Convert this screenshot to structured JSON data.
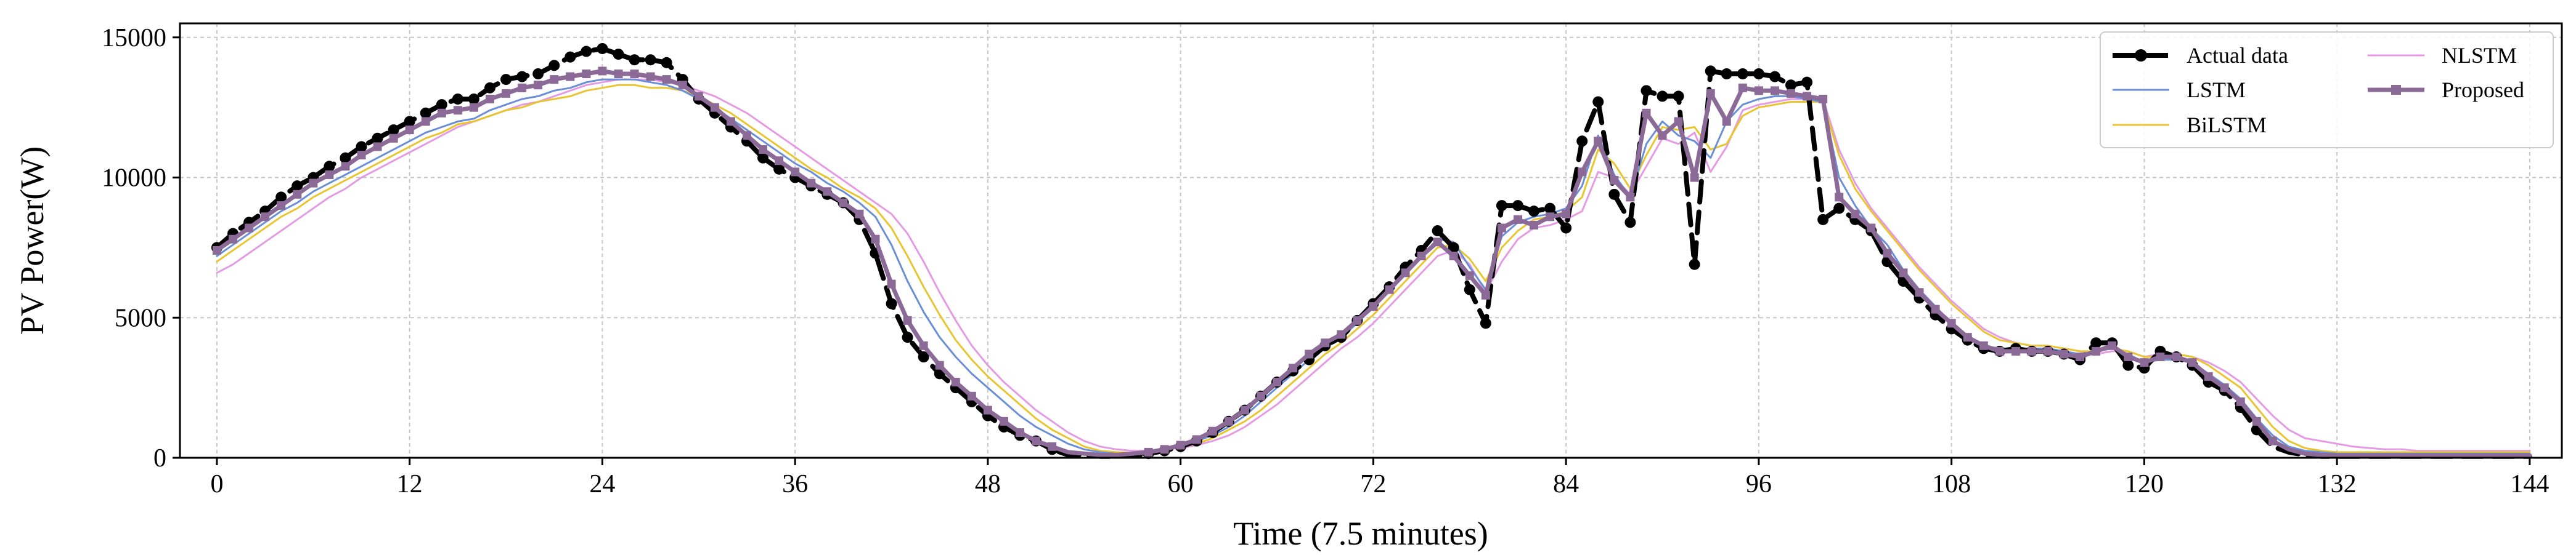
{
  "chart_data": {
    "type": "line",
    "title": "",
    "xlabel": "Time (7.5 minutes)",
    "ylabel": "PV Power(W)",
    "xlim": [
      -2.3,
      146
    ],
    "ylim": [
      0,
      15500
    ],
    "xticks": [
      0,
      12,
      24,
      36,
      48,
      60,
      72,
      84,
      96,
      108,
      120,
      132,
      144
    ],
    "yticks": [
      0,
      5000,
      10000,
      15000
    ],
    "xtick_labels": [
      "0",
      "12",
      "24",
      "36",
      "48",
      "60",
      "72",
      "84",
      "96",
      "108",
      "120",
      "132",
      "144"
    ],
    "ytick_labels": [
      "0",
      "5000",
      "10000",
      "15000"
    ],
    "grid": true,
    "legend_position": "top-right",
    "colors": {
      "Actual data": "#000000",
      "LSTM": "#6b8fd6",
      "BiLSTM": "#e8c531",
      "NLSTM": "#e49be4",
      "Proposed": "#8c6a98"
    },
    "series": [
      {
        "name": "Actual data",
        "style": "dashed-with-circle-markers",
        "x_start": 0,
        "x_step": 1,
        "values": [
          7500,
          8000,
          8400,
          8800,
          9300,
          9700,
          10000,
          10400,
          10700,
          11100,
          11400,
          11700,
          12000,
          12300,
          12600,
          12800,
          12800,
          13200,
          13500,
          13600,
          13700,
          14000,
          14300,
          14500,
          14600,
          14400,
          14200,
          14200,
          14100,
          13500,
          12800,
          12300,
          11800,
          11300,
          10700,
          10300,
          10000,
          9700,
          9400,
          9100,
          8500,
          7300,
          5500,
          4300,
          3600,
          3000,
          2500,
          2000,
          1500,
          1100,
          800,
          600,
          300,
          100,
          100,
          50,
          50,
          80,
          150,
          250,
          400,
          600,
          900,
          1300,
          1700,
          2200,
          2700,
          3100,
          3500,
          4000,
          4300,
          4900,
          5500,
          6100,
          6800,
          7400,
          8100,
          7500,
          6000,
          4800,
          9000,
          9000,
          8800,
          8900,
          8200,
          11300,
          12700,
          9400,
          8400,
          13100,
          12900,
          12900,
          6900,
          13800,
          13700,
          13700,
          13700,
          13600,
          13300,
          13400,
          8500,
          8900,
          8500,
          8100,
          7000,
          6300,
          5700,
          5100,
          4600,
          4200,
          3900,
          3800,
          3900,
          3800,
          3800,
          3700,
          3500,
          4100,
          4100,
          3300,
          3200,
          3800,
          3600,
          3300,
          2700,
          2400,
          1800,
          1000,
          400,
          200,
          100,
          50,
          50,
          50,
          50,
          50,
          50,
          50,
          50,
          50,
          50,
          50,
          50,
          50,
          50
        ]
      },
      {
        "name": "LSTM",
        "style": "solid",
        "x_start": 0,
        "x_step": 1,
        "values": [
          7200,
          7600,
          8000,
          8400,
          8800,
          9100,
          9500,
          9800,
          10100,
          10400,
          10700,
          11000,
          11300,
          11600,
          11800,
          12000,
          12100,
          12400,
          12600,
          12800,
          12900,
          13100,
          13200,
          13400,
          13500,
          13500,
          13500,
          13400,
          13300,
          13100,
          12800,
          12500,
          12100,
          11700,
          11300,
          10900,
          10500,
          10200,
          9800,
          9500,
          9100,
          8600,
          7600,
          6300,
          5200,
          4300,
          3600,
          3000,
          2500,
          2000,
          1500,
          1100,
          800,
          500,
          300,
          200,
          150,
          150,
          200,
          300,
          400,
          600,
          800,
          1100,
          1500,
          2000,
          2500,
          3000,
          3500,
          3900,
          4300,
          4800,
          5400,
          6000,
          6600,
          7200,
          7800,
          7700,
          6800,
          6000,
          7900,
          8400,
          8600,
          8700,
          8900,
          9700,
          11500,
          10100,
          9300,
          11200,
          12000,
          11500,
          11300,
          10700,
          12000,
          12600,
          12800,
          12900,
          12900,
          12800,
          12700,
          10000,
          9000,
          8200,
          7600,
          6700,
          6000,
          5400,
          4800,
          4300,
          4000,
          3900,
          3900,
          3900,
          3900,
          3800,
          3700,
          3800,
          3900,
          3700,
          3400,
          3500,
          3500,
          3400,
          3000,
          2600,
          2100,
          1400,
          800,
          400,
          250,
          200,
          150,
          150,
          150,
          150,
          150,
          150,
          150,
          150,
          150,
          150,
          150,
          150,
          150
        ]
      },
      {
        "name": "BiLSTM",
        "style": "solid",
        "x_start": 0,
        "x_step": 1,
        "values": [
          7000,
          7400,
          7800,
          8200,
          8600,
          8900,
          9300,
          9600,
          9900,
          10200,
          10500,
          10800,
          11100,
          11400,
          11600,
          11900,
          12000,
          12200,
          12400,
          12500,
          12700,
          12800,
          12900,
          13100,
          13200,
          13300,
          13300,
          13200,
          13200,
          13100,
          12900,
          12600,
          12300,
          11900,
          11500,
          11100,
          10700,
          10300,
          10000,
          9600,
          9300,
          8900,
          8200,
          7200,
          6100,
          5100,
          4200,
          3500,
          2900,
          2400,
          1900,
          1400,
          1000,
          700,
          400,
          250,
          200,
          180,
          220,
          300,
          400,
          500,
          700,
          1000,
          1300,
          1700,
          2200,
          2700,
          3200,
          3700,
          4100,
          4600,
          5100,
          5700,
          6300,
          6900,
          7500,
          7600,
          7100,
          6300,
          7500,
          8100,
          8500,
          8600,
          8800,
          9300,
          11000,
          10500,
          9600,
          10800,
          11800,
          11700,
          11800,
          11000,
          11200,
          12200,
          12500,
          12600,
          12700,
          12700,
          12700,
          10800,
          9600,
          8800,
          8100,
          7400,
          6700,
          6100,
          5500,
          5000,
          4500,
          4200,
          4100,
          4000,
          4000,
          3900,
          3800,
          3800,
          3900,
          3800,
          3600,
          3600,
          3700,
          3600,
          3300,
          2900,
          2500,
          1800,
          1100,
          600,
          350,
          250,
          200,
          200,
          200,
          200,
          200,
          200,
          200,
          200,
          200,
          200,
          200,
          200,
          200
        ]
      },
      {
        "name": "NLSTM",
        "style": "solid",
        "x_start": 0,
        "x_step": 1,
        "values": [
          6600,
          6900,
          7300,
          7700,
          8100,
          8500,
          8900,
          9300,
          9600,
          10000,
          10300,
          10600,
          10900,
          11200,
          11500,
          11800,
          12000,
          12200,
          12400,
          12600,
          12700,
          12900,
          13100,
          13300,
          13400,
          13500,
          13500,
          13500,
          13400,
          13300,
          13100,
          12900,
          12600,
          12300,
          11900,
          11500,
          11100,
          10700,
          10300,
          9900,
          9500,
          9100,
          8700,
          8000,
          7000,
          5900,
          4900,
          4000,
          3300,
          2700,
          2200,
          1700,
          1300,
          900,
          600,
          400,
          300,
          250,
          250,
          300,
          350,
          450,
          600,
          800,
          1100,
          1500,
          1900,
          2400,
          2900,
          3400,
          3900,
          4300,
          4800,
          5400,
          6000,
          6600,
          7200,
          7400,
          6900,
          5900,
          7000,
          7800,
          8200,
          8300,
          8500,
          8800,
          10200,
          10000,
          9400,
          10400,
          11400,
          11200,
          11600,
          10200,
          11100,
          12400,
          12600,
          12700,
          12800,
          12800,
          12800,
          11000,
          9800,
          8900,
          8200,
          7500,
          6800,
          6200,
          5600,
          5100,
          4600,
          4300,
          4100,
          4000,
          4000,
          3900,
          3800,
          3700,
          3800,
          3800,
          3600,
          3700,
          3700,
          3600,
          3400,
          3100,
          2700,
          2100,
          1500,
          1000,
          700,
          600,
          500,
          400,
          350,
          300,
          300,
          250,
          250,
          250,
          250,
          250,
          250,
          250,
          250
        ]
      },
      {
        "name": "Proposed",
        "style": "solid-with-square-markers",
        "x_start": 0,
        "x_step": 1,
        "values": [
          7400,
          7800,
          8200,
          8600,
          9000,
          9400,
          9800,
          10100,
          10400,
          10800,
          11100,
          11400,
          11700,
          12000,
          12300,
          12400,
          12500,
          12800,
          13000,
          13200,
          13300,
          13500,
          13600,
          13700,
          13800,
          13700,
          13700,
          13600,
          13500,
          13300,
          12900,
          12500,
          12000,
          11500,
          11000,
          10600,
          10200,
          9800,
          9500,
          9100,
          8700,
          7800,
          6200,
          4900,
          4000,
          3300,
          2700,
          2200,
          1700,
          1300,
          900,
          600,
          400,
          200,
          150,
          100,
          100,
          150,
          200,
          300,
          450,
          650,
          950,
          1300,
          1700,
          2200,
          2700,
          3200,
          3700,
          4100,
          4400,
          4900,
          5400,
          6000,
          6600,
          7200,
          7700,
          7200,
          6500,
          5800,
          8200,
          8500,
          8300,
          8600,
          8700,
          10200,
          11300,
          9900,
          9300,
          12300,
          11500,
          12000,
          10000,
          13000,
          12000,
          13200,
          13100,
          13100,
          13000,
          12900,
          12800,
          9300,
          8700,
          8200,
          7300,
          6600,
          5900,
          5300,
          4800,
          4300,
          4000,
          3800,
          3800,
          3800,
          3800,
          3700,
          3600,
          3800,
          4000,
          3600,
          3400,
          3600,
          3600,
          3400,
          2900,
          2500,
          2000,
          1300,
          600,
          300,
          150,
          100,
          80,
          80,
          80,
          80,
          80,
          80,
          80,
          80,
          80,
          80,
          80,
          80,
          80
        ]
      }
    ]
  }
}
